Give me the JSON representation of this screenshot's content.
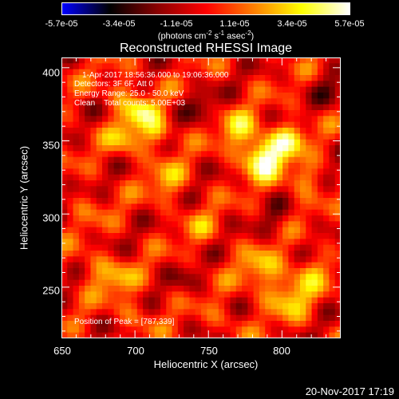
{
  "colors": {
    "cmap": [
      "#0000ff",
      "#000000",
      "#8b0000",
      "#ff0000",
      "#ff7f00",
      "#ffff00",
      "#ffffff"
    ],
    "plot_bg": "#4a2a7a",
    "frame": "#ffffff"
  },
  "colorbar": {
    "ticks": [
      "-5.7e-05",
      "-3.4e-05",
      "-1.1e-05",
      "1.1e-05",
      "3.4e-05",
      "5.7e-05"
    ],
    "units": {
      "a": "(photons cm",
      "b": "-2",
      "c": " s",
      "d": "-1",
      "e": " asec",
      "f": "-2",
      "g": ")"
    }
  },
  "info": {
    "time_range": "1-Apr-2017 18:56:36.000 to 19:06:36.000",
    "detectors": "Detectors: 3F 6F, Att 0",
    "energy": "Energy Range: 25.0 - 50.0 keV",
    "clean": "Clean    Total counts: 5.00E+03",
    "peak": "Position of Peak = [787,339]"
  },
  "timestamp": "20-Nov-2017 17:19",
  "chart_data": {
    "type": "heatmap",
    "title": "Reconstructed RHESSI Image",
    "xlabel": "Heliocentric X (arcsec)",
    "ylabel": "Heliocentric Y (arcsec)",
    "xlim": [
      650,
      840
    ],
    "ylim": [
      215,
      407
    ],
    "xticks": [
      "650",
      "700",
      "750",
      "800"
    ],
    "yticks": [
      "250",
      "300",
      "350",
      "400"
    ],
    "value_range": [
      -5.7e-05,
      5.7e-05
    ],
    "peak": [
      787,
      339
    ],
    "sources": [
      {
        "x": 787,
        "y": 339,
        "sigma": 10,
        "amp": 5.7e-05
      },
      {
        "x": 805,
        "y": 352,
        "sigma": 8,
        "amp": 3.6e-05
      },
      {
        "x": 770,
        "y": 358,
        "sigma": 9,
        "amp": 2.8e-05
      },
      {
        "x": 815,
        "y": 325,
        "sigma": 8,
        "amp": 2.6e-05
      },
      {
        "x": 705,
        "y": 370,
        "sigma": 8,
        "amp": 3.4e-05
      },
      {
        "x": 695,
        "y": 352,
        "sigma": 9,
        "amp": 2.7e-05
      },
      {
        "x": 715,
        "y": 355,
        "sigma": 7,
        "amp": 2.9e-05
      },
      {
        "x": 722,
        "y": 322,
        "sigma": 9,
        "amp": 2.4e-05
      },
      {
        "x": 690,
        "y": 385,
        "sigma": 8,
        "amp": 2e-05
      },
      {
        "x": 805,
        "y": 245,
        "sigma": 11,
        "amp": 3e-05
      },
      {
        "x": 785,
        "y": 262,
        "sigma": 10,
        "amp": 2.6e-05
      },
      {
        "x": 820,
        "y": 262,
        "sigma": 8,
        "amp": 2.1e-05
      },
      {
        "x": 688,
        "y": 255,
        "sigma": 9,
        "amp": 2.2e-05
      },
      {
        "x": 672,
        "y": 262,
        "sigma": 8,
        "amp": 1.8e-05
      },
      {
        "x": 700,
        "y": 232,
        "sigma": 8,
        "amp": 1.5e-05
      },
      {
        "x": 745,
        "y": 290,
        "sigma": 9,
        "amp": 1.4e-05
      },
      {
        "x": 760,
        "y": 228,
        "sigma": 8,
        "amp": 1.2e-05
      },
      {
        "x": 668,
        "y": 305,
        "sigma": 8,
        "amp": 1.1e-05
      },
      {
        "x": 745,
        "y": 375,
        "sigma": 8,
        "amp": -1.8e-05
      },
      {
        "x": 795,
        "y": 295,
        "sigma": 8,
        "amp": -1.2e-05
      },
      {
        "x": 835,
        "y": 385,
        "sigma": 9,
        "amp": -1.5e-05
      },
      {
        "x": 735,
        "y": 255,
        "sigma": 8,
        "amp": -1e-05
      }
    ]
  }
}
